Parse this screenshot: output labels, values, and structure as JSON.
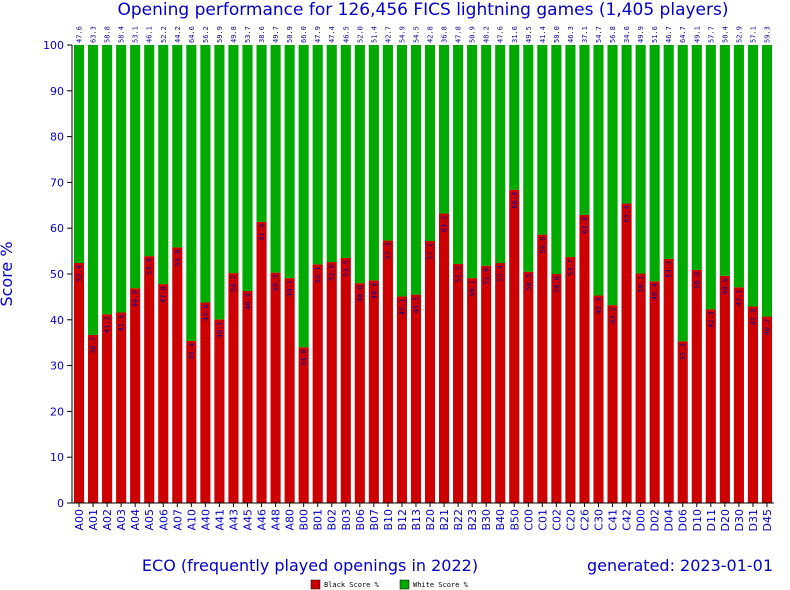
{
  "chart_data": {
    "type": "bar",
    "stacked": true,
    "title": "Opening performance for 126,456 FICS lightning games (1,405 players)",
    "xlabel": "ECO (frequently played openings in 2022)",
    "ylabel": "Score %",
    "footer": "generated: 2023-01-01",
    "ylim": [
      0,
      100
    ],
    "yticks": [
      0,
      10,
      20,
      30,
      40,
      50,
      60,
      70,
      80,
      90,
      100
    ],
    "grid": false,
    "legend_position": "bottom",
    "categories": [
      "A00",
      "A01",
      "A02",
      "A03",
      "A04",
      "A05",
      "A06",
      "A07",
      "A10",
      "A40",
      "A41",
      "A43",
      "A45",
      "A46",
      "A48",
      "A80",
      "B00",
      "B01",
      "B02",
      "B03",
      "B06",
      "B07",
      "B10",
      "B12",
      "B13",
      "B20",
      "B21",
      "B22",
      "B23",
      "B30",
      "B40",
      "B50",
      "C00",
      "C01",
      "C02",
      "C20",
      "C26",
      "C30",
      "C41",
      "C42",
      "D00",
      "D02",
      "D04",
      "D06",
      "D10",
      "D11",
      "D20",
      "D30",
      "D31",
      "D45"
    ],
    "series": [
      {
        "name": "Black Score %",
        "color": "#cc0000",
        "values": [
          52.4,
          36.7,
          41.2,
          41.6,
          46.9,
          53.9,
          47.8,
          55.8,
          35.4,
          43.8,
          40.1,
          50.2,
          46.3,
          61.4,
          50.3,
          49.1,
          34.0,
          52.1,
          52.6,
          53.5,
          48.0,
          48.6,
          57.3,
          45.1,
          45.5,
          57.2,
          63.2,
          52.2,
          49.1,
          51.8,
          52.4,
          68.4,
          50.5,
          58.6,
          50.0,
          53.7,
          62.9,
          45.3,
          43.2,
          65.4,
          50.1,
          48.4,
          53.3,
          35.3,
          50.9,
          42.3,
          49.6,
          47.1,
          42.9,
          40.7
        ]
      },
      {
        "name": "White Score %",
        "color": "#00aa00",
        "values": [
          47.6,
          63.3,
          58.8,
          58.4,
          53.1,
          46.1,
          52.2,
          44.2,
          64.6,
          56.2,
          59.9,
          49.8,
          53.7,
          38.6,
          49.7,
          50.9,
          66.0,
          47.9,
          47.4,
          46.5,
          52.0,
          51.4,
          42.7,
          54.9,
          54.5,
          42.8,
          36.8,
          47.8,
          50.9,
          48.2,
          47.6,
          31.6,
          49.5,
          41.4,
          50.0,
          46.3,
          37.1,
          54.7,
          56.8,
          34.6,
          49.9,
          51.6,
          46.7,
          64.7,
          49.1,
          57.7,
          50.4,
          52.9,
          57.1,
          59.3
        ]
      }
    ]
  }
}
